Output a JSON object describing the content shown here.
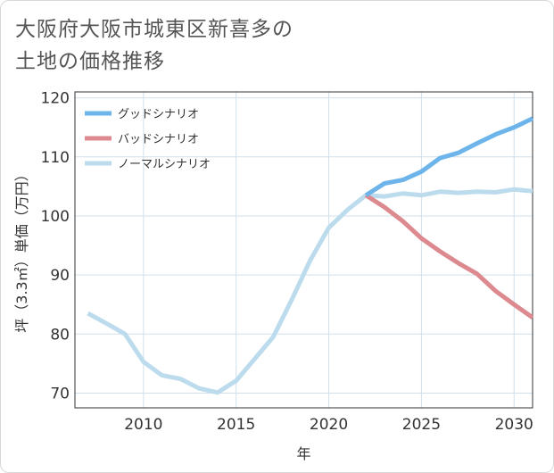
{
  "title": "大阪府大阪市城東区新喜多の\n土地の価格推移",
  "colors": {
    "good": "#6cb4ea",
    "bad": "#dc8a8f",
    "normal": "#bcdcee",
    "grid": "#cfe0ec",
    "plot_border": "#333333"
  },
  "chart_data": {
    "type": "line",
    "title": "大阪府大阪市城東区新喜多の\n土地の価格推移",
    "xlabel": "年",
    "ylabel": "坪（3.3㎡）単価（万円）",
    "xlim": [
      2006.3,
      2031
    ],
    "ylim": [
      67.5,
      121
    ],
    "x_ticks": [
      2010,
      2015,
      2020,
      2025,
      2030
    ],
    "y_ticks": [
      70,
      80,
      90,
      100,
      110,
      120
    ],
    "grid": true,
    "legend_position": "top-left",
    "series": [
      {
        "name": "グッドシナリオ",
        "color_key": "good",
        "x": [
          2022,
          2023,
          2024,
          2025,
          2026,
          2027,
          2028,
          2029,
          2030,
          2031
        ],
        "y": [
          103.5,
          105.5,
          106.1,
          107.5,
          109.8,
          110.7,
          112.3,
          113.8,
          115.0,
          116.5
        ]
      },
      {
        "name": "バッドシナリオ",
        "color_key": "bad",
        "x": [
          2022,
          2023,
          2024,
          2025,
          2026,
          2027,
          2028,
          2029,
          2030,
          2031
        ],
        "y": [
          103.5,
          101.5,
          99.1,
          96.2,
          94.0,
          92.0,
          90.2,
          87.3,
          85.0,
          82.8
        ]
      },
      {
        "name": "ノーマルシナリオ",
        "color_key": "normal",
        "x": [
          2007,
          2008,
          2009,
          2010,
          2011,
          2012,
          2013,
          2014,
          2015,
          2016,
          2017,
          2018,
          2019,
          2020,
          2021,
          2022,
          2023,
          2024,
          2025,
          2026,
          2027,
          2028,
          2029,
          2030,
          2031
        ],
        "y": [
          83.5,
          81.8,
          80.0,
          75.3,
          73.0,
          72.4,
          70.8,
          70.1,
          72.1,
          75.8,
          79.5,
          85.8,
          92.5,
          98.0,
          101.0,
          103.5,
          103.3,
          103.8,
          103.5,
          104.1,
          103.9,
          104.1,
          104.0,
          104.5,
          104.2
        ]
      }
    ]
  }
}
